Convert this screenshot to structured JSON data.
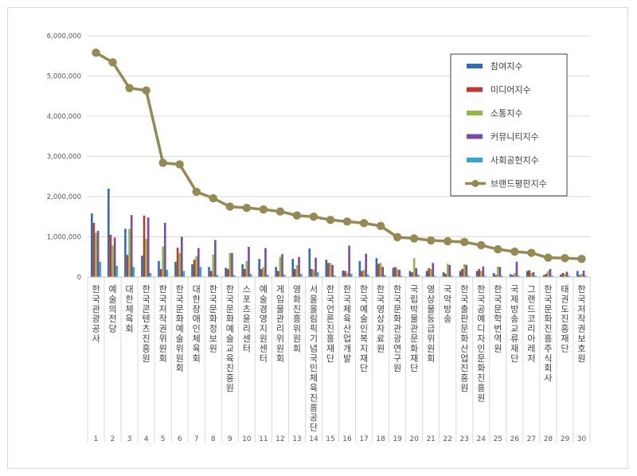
{
  "chart_data": {
    "type": "bar",
    "title": "",
    "xlabel": "",
    "ylabel": "",
    "ylim": [
      0,
      6000000
    ],
    "yticks": [
      "0",
      "1,000,000",
      "2,000,000",
      "3,000,000",
      "4,000,000",
      "5,000,000",
      "6,000,000"
    ],
    "ytick_values": [
      0,
      1000000,
      2000000,
      3000000,
      4000000,
      5000000,
      6000000
    ],
    "grid": true,
    "legend_position": "top-right",
    "categories": [
      "한국관광공사",
      "예술의전당",
      "대한체육회",
      "한국콘텐츠진흥원",
      "한국저작권위원회",
      "한국문화예술위원회",
      "대한장애인체육회",
      "한국문화정보원",
      "한국문화예술교육진흥원",
      "스포츠윤리센터",
      "예술경영지원센터",
      "게임물관리위원회",
      "영화진흥위원회",
      "서울올림픽기념국민체육진흥공단",
      "한국언론진흥재단",
      "한국체육산업개발",
      "한국예술인복지재단",
      "한국영상자료원",
      "한국문화관광연구원",
      "국립박물관문화재단",
      "영상물등급위원회",
      "국악방송",
      "한국출판문화산업진흥원",
      "한국공예디자인문화진흥원",
      "한국문학번역원",
      "국제방송교류재단",
      "그랜드코리아레저",
      "한국문화진흥주식회사",
      "태권도진흥재단",
      "한국저작권보호원"
    ],
    "ranks": [
      "1",
      "2",
      "3",
      "4",
      "5",
      "6",
      "7",
      "8",
      "9",
      "10",
      "11",
      "12",
      "13",
      "14",
      "15",
      "16",
      "17",
      "18",
      "19",
      "20",
      "21",
      "22",
      "23",
      "24",
      "25",
      "26",
      "27",
      "28",
      "29",
      "30"
    ],
    "series": [
      {
        "name": "참여지수",
        "kind": "bar",
        "color": "#2e6db4",
        "values": [
          1580000,
          2200000,
          1200000,
          530000,
          400000,
          380000,
          320000,
          250000,
          230000,
          320000,
          450000,
          250000,
          450000,
          710000,
          430000,
          160000,
          400000,
          470000,
          230000,
          150000,
          150000,
          120000,
          150000,
          150000,
          100000,
          70000,
          150000,
          50000,
          60000,
          150000
        ]
      },
      {
        "name": "미디어지수",
        "kind": "bar",
        "color": "#c0392b",
        "values": [
          1350000,
          1050000,
          550000,
          1530000,
          200000,
          730000,
          430000,
          150000,
          200000,
          200000,
          200000,
          150000,
          200000,
          200000,
          350000,
          150000,
          150000,
          330000,
          250000,
          120000,
          220000,
          80000,
          200000,
          200000,
          50000,
          50000,
          170000,
          80000,
          100000,
          50000
        ]
      },
      {
        "name": "소통지수",
        "kind": "bar",
        "color": "#8db944",
        "values": [
          1100000,
          780000,
          1200000,
          950000,
          760000,
          600000,
          520000,
          560000,
          600000,
          400000,
          250000,
          500000,
          300000,
          180000,
          350000,
          100000,
          180000,
          350000,
          200000,
          470000,
          200000,
          330000,
          320000,
          150000,
          260000,
          100000,
          100000,
          150000,
          80000,
          80000
        ]
      },
      {
        "name": "커뮤니티지수",
        "kind": "bar",
        "color": "#7b4aa8",
        "values": [
          1150000,
          980000,
          1540000,
          1480000,
          1350000,
          1000000,
          720000,
          920000,
          600000,
          750000,
          720000,
          570000,
          500000,
          480000,
          300000,
          780000,
          580000,
          250000,
          180000,
          220000,
          350000,
          300000,
          300000,
          260000,
          250000,
          380000,
          120000,
          200000,
          130000,
          160000
        ]
      },
      {
        "name": "사회공헌지수",
        "kind": "bar",
        "color": "#3ba3d0",
        "values": [
          380000,
          280000,
          250000,
          100000,
          180000,
          150000,
          250000,
          50000,
          50000,
          80000,
          60000,
          60000,
          80000,
          120000,
          40000,
          80000,
          60000,
          50000,
          30000,
          60000,
          30000,
          30000,
          30000,
          30000,
          30000,
          30000,
          30000,
          30000,
          30000,
          30000
        ]
      },
      {
        "name": "브랜드평판지수",
        "kind": "line",
        "color": "#948a54",
        "values": [
          5580000,
          5340000,
          4700000,
          4640000,
          2840000,
          2800000,
          2120000,
          1960000,
          1750000,
          1720000,
          1680000,
          1630000,
          1530000,
          1500000,
          1420000,
          1380000,
          1340000,
          1270000,
          990000,
          960000,
          910000,
          890000,
          870000,
          790000,
          690000,
          630000,
          600000,
          480000,
          470000,
          450000
        ]
      }
    ]
  }
}
